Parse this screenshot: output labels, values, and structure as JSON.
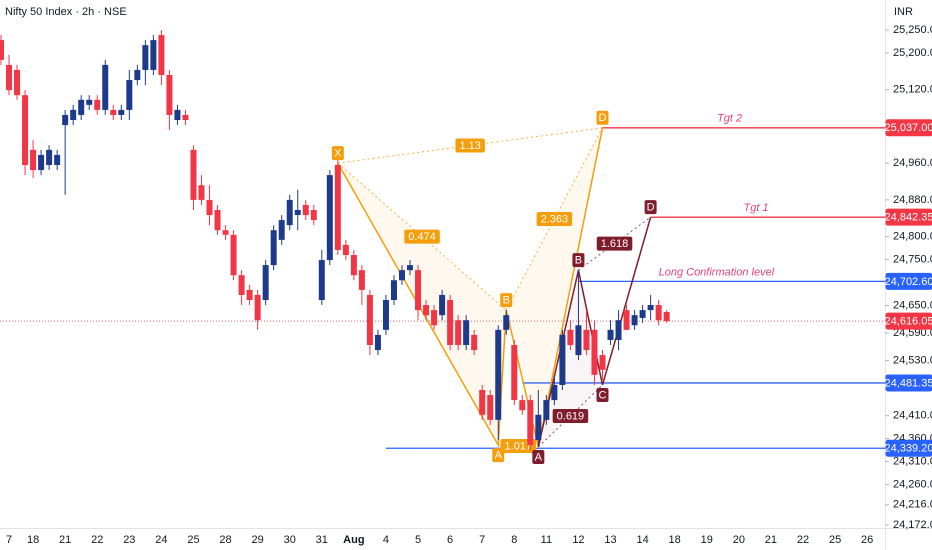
{
  "chart_data": {
    "type": "candlestick",
    "title": "Nifty 50 Index · 2h · NSE",
    "currency": "INR",
    "up_color": "#1e3a8a",
    "down_color": "#f23645",
    "grid": false,
    "ylim": [
      24172,
      25250
    ],
    "yticks": [
      {
        "value": 25250,
        "label": "25,250.00"
      },
      {
        "value": 25200,
        "label": "25,200.00"
      },
      {
        "value": 25120,
        "label": "25,120.00"
      },
      {
        "value": 24960,
        "label": "24,960.00"
      },
      {
        "value": 24880,
        "label": "24,880.00"
      },
      {
        "value": 24800,
        "label": "24,800.00"
      },
      {
        "value": 24750,
        "label": "24,750.00"
      },
      {
        "value": 24650,
        "label": "24,650.00"
      },
      {
        "value": 24590,
        "label": "24,590.00"
      },
      {
        "value": 24530,
        "label": "24,530.00"
      },
      {
        "value": 24410,
        "label": "24,410.00"
      },
      {
        "value": 24360,
        "label": "24,360.00"
      },
      {
        "value": 24310,
        "label": "24,310.00"
      },
      {
        "value": 24260,
        "label": "24,260.00"
      },
      {
        "value": 24216,
        "label": "24,216.00"
      },
      {
        "value": 24172,
        "label": "24,172.00"
      }
    ],
    "categories": [
      null,
      "7",
      null,
      null,
      "18",
      null,
      null,
      null,
      "21",
      null,
      null,
      null,
      "22",
      null,
      null,
      null,
      "23",
      null,
      null,
      null,
      "24",
      null,
      null,
      null,
      "25",
      null,
      null,
      null,
      "28",
      null,
      null,
      null,
      "29",
      null,
      null,
      null,
      "30",
      null,
      null,
      null,
      "31",
      null,
      null,
      null,
      "Aug",
      null,
      null,
      null,
      "4",
      null,
      null,
      null,
      "5",
      null,
      null,
      null,
      "6",
      null,
      null,
      null,
      "7",
      null,
      null,
      null,
      "8",
      null,
      null,
      null,
      "11",
      null,
      null,
      null,
      "12",
      null,
      null,
      null,
      "13",
      null,
      null,
      null,
      "14",
      null,
      null,
      null,
      "18",
      null,
      null,
      null,
      "19",
      null,
      null,
      null,
      "20",
      null,
      null,
      null,
      "21",
      null,
      null,
      null,
      "22",
      null,
      null,
      null,
      "25",
      null,
      null,
      null,
      "26"
    ],
    "open": [
      25228,
      25174,
      25163,
      25108,
      24989,
      24945,
      24956,
      24956,
      25043,
      25054,
      25065,
      25087,
      25098,
      25076,
      25076,
      25065,
      25076,
      25141,
      25163,
      25163,
      25239,
      25152,
      25054,
      25065,
      24989,
      24912,
      24880,
      24858,
      24814,
      24804,
      24716,
      24684,
      24673,
      24662,
      24738,
      24793,
      24825,
      24847,
      24869,
      24858,
      24662,
      24749,
      24956,
      24782,
      24760,
      24727,
      24673,
      24553,
      24597,
      24662,
      24705,
      24727,
      24727,
      24651,
      24640,
      24629,
      24662,
      24618,
      24564,
      24586,
      24466,
      24455,
      24401,
      24597,
      24564,
      24444,
      24444,
      24357,
      24401,
      24444,
      24477,
      24597,
      24542,
      24597,
      24597,
      24542,
      24575,
      24575,
      24640,
      24607,
      24623,
      24640,
      24651,
      24636,
      null,
      null,
      null,
      null,
      null,
      null,
      null,
      null,
      null,
      null,
      null,
      null,
      null,
      null,
      null,
      null,
      null,
      null,
      null,
      null,
      null,
      null,
      null,
      null,
      null
    ],
    "high": [
      25239,
      25196,
      25174,
      25119,
      25010,
      24989,
      24999,
      24989,
      25076,
      25087,
      25108,
      25108,
      25108,
      25185,
      25087,
      25087,
      25163,
      25174,
      25228,
      25239,
      25250,
      25163,
      25087,
      25076,
      24999,
      24934,
      24912,
      24869,
      24825,
      24814,
      24727,
      24695,
      24684,
      24749,
      24825,
      24847,
      24891,
      24902,
      24880,
      24869,
      24771,
      24945,
      24967,
      24793,
      24771,
      24738,
      24684,
      24597,
      24673,
      24716,
      24738,
      24749,
      24738,
      24662,
      24651,
      24684,
      24673,
      24629,
      24629,
      24597,
      24477,
      24466,
      24607,
      24640,
      24575,
      24455,
      24455,
      24466,
      24455,
      24499,
      24597,
      24618,
      24727,
      24640,
      24618,
      24553,
      24618,
      24640,
      24651,
      24640,
      24651,
      24673,
      24662,
      24640,
      null,
      null,
      null,
      null,
      null,
      null,
      null,
      null,
      null,
      null,
      null,
      null,
      null,
      null,
      null,
      null,
      null,
      null,
      null,
      null,
      null,
      null,
      null,
      null,
      null
    ],
    "low": [
      25174,
      25108,
      25098,
      24934,
      24928,
      24934,
      24945,
      24945,
      24891,
      25043,
      25054,
      25076,
      25065,
      25065,
      25054,
      25054,
      25054,
      25130,
      25130,
      25152,
      25130,
      25032,
      25043,
      25043,
      24858,
      24869,
      24825,
      24804,
      24793,
      24705,
      24651,
      24651,
      24597,
      24651,
      24727,
      24782,
      24814,
      24814,
      24836,
      24825,
      24651,
      24738,
      24760,
      24749,
      24705,
      24651,
      24542,
      24542,
      24586,
      24651,
      24695,
      24716,
      24618,
      24618,
      24597,
      24618,
      24553,
      24553,
      24553,
      24542,
      24401,
      24390,
      24357,
      24586,
      24433,
      24412,
      24335,
      24346,
      24390,
      24433,
      24466,
      24553,
      24531,
      24542,
      24477,
      24488,
      24564,
      24553,
      24597,
      24597,
      24612,
      24618,
      24607,
      24612,
      null,
      null,
      null,
      null,
      null,
      null,
      null,
      null,
      null,
      null,
      null,
      null,
      null,
      null,
      null,
      null,
      null,
      null,
      null,
      null,
      null,
      null,
      null,
      null,
      null
    ],
    "close": [
      25185,
      25119,
      25108,
      24956,
      24945,
      24978,
      24989,
      24978,
      25065,
      25076,
      25098,
      25098,
      25076,
      25174,
      25065,
      25076,
      25141,
      25163,
      25217,
      25228,
      25152,
      25065,
      25076,
      25054,
      24880,
      24880,
      24847,
      24814,
      24804,
      24716,
      24673,
      24662,
      24618,
      24738,
      24814,
      24836,
      24880,
      24858,
      24847,
      24836,
      24749,
      24934,
      24771,
      24760,
      24716,
      24684,
      24564,
      24586,
      24662,
      24705,
      24727,
      24738,
      24640,
      24629,
      24607,
      24673,
      24564,
      24564,
      24618,
      24553,
      24412,
      24401,
      24597,
      24629,
      24444,
      24422,
      24346,
      24412,
      24444,
      24477,
      24586,
      24564,
      24607,
      24553,
      24499,
      24510,
      24597,
      24618,
      24597,
      24629,
      24640,
      24651,
      24618,
      24616.05,
      null,
      null,
      null,
      null,
      null,
      null,
      null,
      null,
      null,
      null,
      null,
      null,
      null,
      null,
      null,
      null,
      null,
      null,
      null,
      null,
      null,
      null,
      null,
      null,
      null
    ],
    "last_price": {
      "value": 24616.05,
      "label": "24,616.05",
      "color": "#f23645"
    },
    "levels": [
      {
        "price": 25037,
        "label": "25,037.00",
        "color": "#f23645",
        "from": 75,
        "text": "Tgt 2"
      },
      {
        "price": 24842.35,
        "label": "24,842.35",
        "color": "#f23645",
        "from": 81,
        "text": "Tgt 1"
      },
      {
        "price": 24702.6,
        "label": "24,702.60",
        "color": "#2962ff",
        "from": 72,
        "text": "Long Confirmation level"
      },
      {
        "price": 24481.35,
        "label": "24,481.35",
        "color": "#2962ff",
        "from": 65
      },
      {
        "price": 24339.2,
        "label": "24,339.20",
        "color": "#2962ff",
        "from": 48
      }
    ],
    "patterns": [
      {
        "color": "#f59e0b",
        "fill": "rgba(245,158,11,0.07)",
        "points": [
          {
            "label": "X",
            "x": 42,
            "price": 24960
          },
          {
            "label": "A",
            "x": 62,
            "price": 24346
          },
          {
            "label": "B",
            "x": 63,
            "price": 24640
          },
          {
            "label": null,
            "x": 67,
            "price": 24342
          },
          {
            "label": "D",
            "x": 75,
            "price": 25037
          }
        ],
        "ratios": [
          {
            "value": 1.13,
            "from": 0,
            "to": 4
          },
          {
            "value": 0.474,
            "from": 0,
            "to": 2
          },
          {
            "value": 2.363,
            "from": 2,
            "to": 4
          },
          {
            "value": 1.017,
            "from": 1,
            "to": 3
          }
        ]
      },
      {
        "color": "#7f1d2d",
        "fill": "rgba(127,29,45,0.04)",
        "points": [
          {
            "label": "A",
            "x": 67,
            "price": 24342
          },
          {
            "label": "B",
            "x": 72,
            "price": 24727
          },
          {
            "label": "C",
            "x": 75,
            "price": 24477
          },
          {
            "label": "D",
            "x": 81,
            "price": 24842.35
          }
        ],
        "ratios": [
          {
            "value": 0.619,
            "from": 0,
            "to": 2
          },
          {
            "value": 1.618,
            "from": 1,
            "to": 3
          }
        ]
      }
    ]
  }
}
